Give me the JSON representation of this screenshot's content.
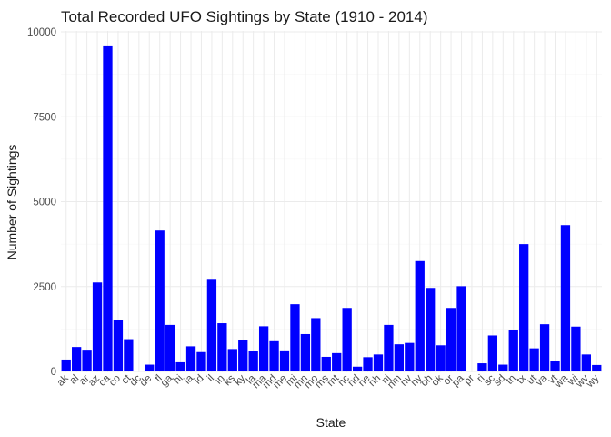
{
  "chart_data": {
    "type": "bar",
    "title": "Total Recorded UFO Sightings by State (1910 - 2014)",
    "xlabel": "State",
    "ylabel": "Number of Sightings",
    "ylim": [
      0,
      10000
    ],
    "y_ticks": [
      0,
      2500,
      5000,
      7500,
      10000
    ],
    "grid": true,
    "bar_color": "#0000FF",
    "categories": [
      "ak",
      "al",
      "ar",
      "az",
      "ca",
      "co",
      "ct",
      "dc",
      "de",
      "fl",
      "ga",
      "hi",
      "ia",
      "id",
      "il",
      "in",
      "ks",
      "ky",
      "la",
      "ma",
      "md",
      "me",
      "mi",
      "mn",
      "mo",
      "ms",
      "mt",
      "nc",
      "nd",
      "ne",
      "nh",
      "nj",
      "nm",
      "nv",
      "ny",
      "oh",
      "ok",
      "or",
      "pa",
      "pr",
      "ri",
      "sc",
      "sd",
      "tn",
      "tx",
      "ut",
      "va",
      "vt",
      "wa",
      "wi",
      "wv",
      "wy"
    ],
    "values": [
      350,
      720,
      640,
      2620,
      9600,
      1520,
      950,
      5,
      200,
      4150,
      1370,
      270,
      740,
      570,
      2700,
      1420,
      660,
      930,
      600,
      1330,
      890,
      620,
      1980,
      1100,
      1570,
      430,
      540,
      1870,
      140,
      420,
      500,
      1370,
      800,
      840,
      3250,
      2460,
      770,
      1870,
      2510,
      20,
      240,
      1060,
      200,
      1230,
      3750,
      680,
      1390,
      300,
      4310,
      1320,
      500,
      190
    ]
  }
}
